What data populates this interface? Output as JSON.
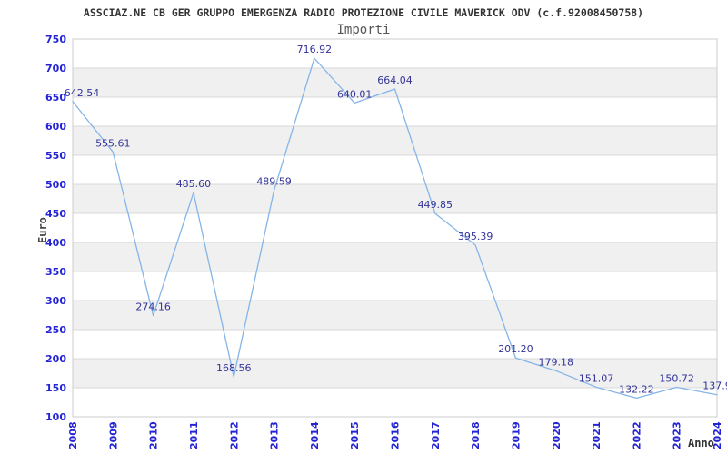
{
  "header": {
    "title": "ASSCIAZ.NE CB GER GRUPPO EMERGENZA RADIO PROTEZIONE CIVILE MAVERICK ODV (c.f.92008450758)",
    "subtitle": "Importi"
  },
  "chart_data": {
    "type": "line",
    "title": "Importi",
    "xlabel": "Anno",
    "ylabel": "Euro",
    "x": [
      "2008",
      "2009",
      "2010",
      "2011",
      "2012",
      "2013",
      "2014",
      "2015",
      "2016",
      "2017",
      "2018",
      "2019",
      "2020",
      "2021",
      "2022",
      "2023",
      "2024"
    ],
    "values": [
      642.54,
      555.61,
      274.16,
      485.6,
      168.56,
      489.59,
      716.92,
      640.01,
      664.04,
      449.85,
      395.39,
      201.2,
      179.18,
      151.07,
      132.22,
      150.72,
      137.9
    ],
    "point_labels": [
      "642.54",
      "555.61",
      "274.16",
      "485.60",
      "168.56",
      "489.59",
      "716.92",
      "640.01",
      "664.04",
      "449.85",
      "395.39",
      "201.20",
      "179.18",
      "151.07",
      "132.22",
      "150.72",
      "137.9"
    ],
    "ylim": [
      100,
      750
    ],
    "ytick_step": 50,
    "legend": "none",
    "grid": "horizontal-bands",
    "colors": {
      "line": "#85b5e8",
      "tick_label": "#2424d4",
      "point_label": "#333399",
      "band": "#f0f0f0",
      "band_alt": "#ffffff",
      "gridline": "#d9d9d9",
      "border": "#cccccc",
      "title": "#333333",
      "subtitle": "#555555",
      "axis_label": "#444444"
    }
  }
}
